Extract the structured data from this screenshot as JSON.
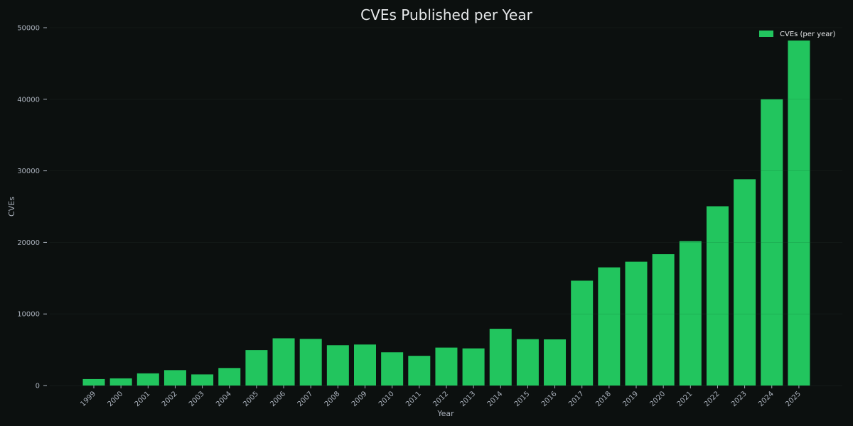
{
  "colors": {
    "background": "#0c100f",
    "bar": "#22c55e",
    "text": "#e6e8ea",
    "muted_text": "#a9b0bb",
    "grid": "#1f2a25"
  },
  "chart_data": {
    "type": "bar",
    "title": "CVEs Published per Year",
    "xlabel": "Year",
    "ylabel": "CVEs",
    "ylim": [
      0,
      50000
    ],
    "yticks": [
      0,
      10000,
      20000,
      30000,
      40000,
      50000
    ],
    "ytick_labels": [
      "0",
      "10000",
      "20000",
      "30000",
      "40000",
      "50000"
    ],
    "grid": true,
    "legend": {
      "placement": "top-right",
      "entries": [
        "CVEs (per year)"
      ]
    },
    "categories": [
      "1999",
      "2000",
      "2001",
      "2002",
      "2003",
      "2004",
      "2005",
      "2006",
      "2007",
      "2008",
      "2009",
      "2010",
      "2011",
      "2012",
      "2013",
      "2014",
      "2015",
      "2016",
      "2017",
      "2018",
      "2019",
      "2020",
      "2021",
      "2022",
      "2023",
      "2024",
      "2025"
    ],
    "series": [
      {
        "name": "CVEs (per year)",
        "values": [
          900,
          1000,
          1700,
          2150,
          1550,
          2450,
          4950,
          6600,
          6520,
          5630,
          5730,
          4640,
          4150,
          5300,
          5190,
          7930,
          6480,
          6450,
          14650,
          16510,
          17300,
          18350,
          20170,
          25050,
          28830,
          40000,
          48200
        ]
      }
    ]
  }
}
